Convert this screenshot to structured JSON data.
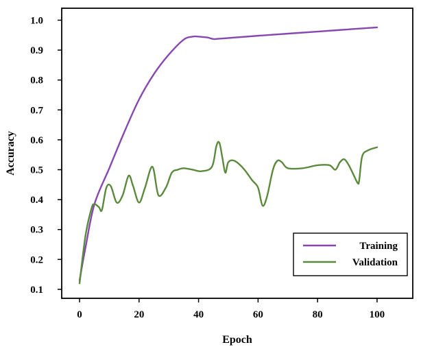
{
  "chart_data": {
    "type": "line",
    "title": "",
    "xlabel": "Epoch",
    "ylabel": "Accuracy",
    "xlim": [
      -6,
      112
    ],
    "ylim": [
      0.07,
      1.04
    ],
    "x_ticks": [
      0,
      20,
      40,
      60,
      80,
      100
    ],
    "x_tick_labels": [
      "0",
      "20",
      "40",
      "60",
      "80",
      "100"
    ],
    "y_ticks": [
      0.1,
      0.2,
      0.3,
      0.4,
      0.5,
      0.6,
      0.7,
      0.8,
      0.9,
      1.0
    ],
    "y_tick_labels": [
      "0.1",
      "0.2",
      "0.3",
      "0.4",
      "0.5",
      "0.6",
      "0.7",
      "0.8",
      "0.9",
      "1.0"
    ],
    "grid": false,
    "legend_position": "bottom-right",
    "series": [
      {
        "name": "Training",
        "color": "#8747b0",
        "x": [
          0,
          2,
          5,
          10,
          15,
          20,
          25,
          30,
          35,
          38,
          40,
          43,
          45,
          47,
          60,
          80,
          100
        ],
        "y": [
          0.13,
          0.24,
          0.385,
          0.505,
          0.625,
          0.735,
          0.82,
          0.885,
          0.935,
          0.945,
          0.945,
          0.942,
          0.937,
          0.938,
          0.948,
          0.962,
          0.976
        ]
      },
      {
        "name": "Validation",
        "color": "#5a8a3c",
        "x": [
          0,
          2,
          4,
          5,
          6.5,
          7.5,
          9,
          10.5,
          12.5,
          14.5,
          16.5,
          18,
          20,
          22,
          24.5,
          26.5,
          29,
          31,
          33,
          35,
          38,
          41,
          44.5,
          46,
          47,
          48,
          49,
          50,
          52,
          55,
          58,
          60,
          61.5,
          63,
          65,
          66.5,
          68,
          70,
          75,
          80,
          84,
          86,
          87.5,
          89,
          90.5,
          92,
          93.5,
          94,
          95,
          97,
          100
        ],
        "y": [
          0.12,
          0.28,
          0.37,
          0.385,
          0.375,
          0.365,
          0.44,
          0.445,
          0.39,
          0.415,
          0.48,
          0.445,
          0.39,
          0.44,
          0.51,
          0.415,
          0.44,
          0.49,
          0.5,
          0.505,
          0.5,
          0.495,
          0.51,
          0.58,
          0.59,
          0.54,
          0.49,
          0.525,
          0.53,
          0.505,
          0.465,
          0.44,
          0.38,
          0.41,
          0.5,
          0.53,
          0.525,
          0.505,
          0.505,
          0.515,
          0.515,
          0.5,
          0.525,
          0.535,
          0.515,
          0.485,
          0.455,
          0.465,
          0.545,
          0.565,
          0.575
        ]
      }
    ]
  }
}
